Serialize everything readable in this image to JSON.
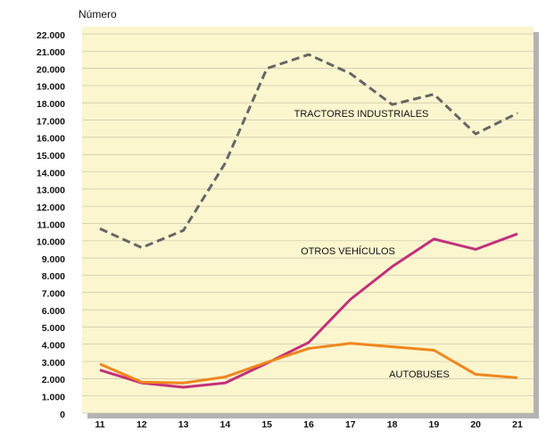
{
  "chart_data": {
    "type": "line",
    "y_label": "Número",
    "categories": [
      "11",
      "12",
      "13",
      "14",
      "15",
      "16",
      "17",
      "18",
      "19",
      "20",
      "21"
    ],
    "series": [
      {
        "name": "TRACTORES INDUSTRIALES",
        "color": "#666666",
        "style": "dashed",
        "values": [
          10700,
          9600,
          10600,
          14500,
          20000,
          20800,
          19700,
          17900,
          18500,
          16200,
          17400
        ]
      },
      {
        "name": "OTROS VEHÍCULOS",
        "color": "#c2307c",
        "style": "solid",
        "values": [
          2500,
          1750,
          1500,
          1750,
          2900,
          4100,
          6600,
          8500,
          10100,
          9500,
          10400
        ]
      },
      {
        "name": "AUTOBUSES",
        "color": "#f0861c",
        "style": "solid",
        "values": [
          2850,
          1800,
          1750,
          2100,
          2950,
          3750,
          4050,
          3850,
          3650,
          2250,
          2050
        ]
      }
    ],
    "ylim": [
      0,
      22000
    ],
    "yticks": [
      0,
      {
        "value": 1000,
        "label": "1.000"
      },
      {
        "value": 2000,
        "label": "2.000"
      },
      {
        "value": 3000,
        "label": "3.000"
      },
      {
        "value": 4000,
        "label": "4.000"
      },
      {
        "value": 5000,
        "label": "5.000"
      },
      {
        "value": 6000,
        "label": "6.000"
      },
      {
        "value": 7000,
        "label": "7.000"
      },
      {
        "value": 8000,
        "label": "8.000"
      },
      {
        "value": 9000,
        "label": "9.000"
      },
      {
        "value": 10000,
        "label": "10.000"
      },
      {
        "value": 11000,
        "label": "11.000"
      },
      {
        "value": 12000,
        "label": "12.000"
      },
      {
        "value": 13000,
        "label": "13.000"
      },
      {
        "value": 14000,
        "label": "14.000"
      },
      {
        "value": 15000,
        "label": "15.000"
      },
      {
        "value": 16000,
        "label": "16.000"
      },
      {
        "value": 17000,
        "label": "17.000"
      },
      {
        "value": 18000,
        "label": "18.000"
      },
      {
        "value": 19000,
        "label": "19.000"
      },
      {
        "value": 20000,
        "label": "20.000"
      },
      {
        "value": 21000,
        "label": "21.000"
      },
      {
        "value": 22000,
        "label": "22.000"
      }
    ],
    "grid": true
  }
}
